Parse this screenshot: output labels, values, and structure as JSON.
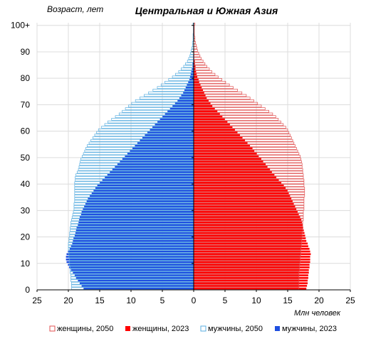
{
  "chart_data": {
    "type": "bar",
    "orientation": "horizontal-population-pyramid",
    "title": "Центральная и Южная Азия",
    "ylabel": "Возраст, лет",
    "xlabel": "Млн человек",
    "y_ticks": [
      "0",
      "10",
      "20",
      "30",
      "40",
      "50",
      "60",
      "70",
      "80",
      "90",
      "100+"
    ],
    "x_ticks": [
      "25",
      "20",
      "15",
      "10",
      "5",
      "0",
      "5",
      "10",
      "15",
      "20",
      "25"
    ],
    "xlim": [
      -25,
      25
    ],
    "ages": [
      0,
      1,
      2,
      3,
      4,
      5,
      6,
      7,
      8,
      9,
      10,
      11,
      12,
      13,
      14,
      15,
      16,
      17,
      18,
      19,
      20,
      21,
      22,
      23,
      24,
      25,
      26,
      27,
      28,
      29,
      30,
      31,
      32,
      33,
      34,
      35,
      36,
      37,
      38,
      39,
      40,
      41,
      42,
      43,
      44,
      45,
      46,
      47,
      48,
      49,
      50,
      51,
      52,
      53,
      54,
      55,
      56,
      57,
      58,
      59,
      60,
      61,
      62,
      63,
      64,
      65,
      66,
      67,
      68,
      69,
      70,
      71,
      72,
      73,
      74,
      75,
      76,
      77,
      78,
      79,
      80,
      81,
      82,
      83,
      84,
      85,
      86,
      87,
      88,
      89,
      90,
      91,
      92,
      93,
      94,
      95,
      96,
      97,
      98,
      99,
      100
    ],
    "legend_position": "bottom",
    "grid": true,
    "series": [
      {
        "name": "женщины, 2050",
        "side": "right",
        "style": "outline",
        "color": "#e05050",
        "values": [
          16.8,
          16.8,
          16.8,
          16.8,
          16.8,
          16.8,
          16.8,
          16.9,
          16.9,
          16.9,
          17.0,
          17.0,
          17.0,
          17.1,
          17.1,
          17.1,
          17.2,
          17.2,
          17.2,
          17.3,
          17.3,
          17.3,
          17.4,
          17.4,
          17.4,
          17.4,
          17.5,
          17.5,
          17.5,
          17.5,
          17.6,
          17.6,
          17.6,
          17.6,
          17.6,
          17.7,
          17.7,
          17.7,
          17.7,
          17.6,
          17.6,
          17.6,
          17.5,
          17.5,
          17.4,
          17.4,
          17.3,
          17.3,
          17.2,
          17.1,
          17.0,
          16.8,
          16.6,
          16.4,
          16.2,
          16.0,
          15.8,
          15.6,
          15.4,
          15.2,
          15.0,
          14.7,
          14.3,
          13.9,
          13.5,
          13.1,
          12.6,
          12.0,
          11.4,
          10.8,
          10.2,
          9.6,
          9.0,
          8.4,
          7.7,
          7.0,
          6.3,
          5.7,
          5.1,
          4.5,
          3.9,
          3.4,
          2.9,
          2.5,
          2.1,
          1.8,
          1.5,
          1.2,
          1.0,
          0.8,
          0.6,
          0.5,
          0.4,
          0.3,
          0.2,
          0.2,
          0.1,
          0.1,
          0.1,
          0.1,
          0.2
        ]
      },
      {
        "name": "женщины, 2023",
        "side": "right",
        "style": "filled",
        "color": "#ff0000",
        "values": [
          18.0,
          18.1,
          18.2,
          18.2,
          18.3,
          18.3,
          18.4,
          18.4,
          18.5,
          18.5,
          18.6,
          18.6,
          18.6,
          18.7,
          18.6,
          18.5,
          18.3,
          18.2,
          18.0,
          17.9,
          17.8,
          17.7,
          17.6,
          17.5,
          17.4,
          17.3,
          17.2,
          17.0,
          16.8,
          16.6,
          16.4,
          16.2,
          16.0,
          15.8,
          15.6,
          15.4,
          15.2,
          15.0,
          14.7,
          14.4,
          14.0,
          13.6,
          13.2,
          12.9,
          12.5,
          12.2,
          11.8,
          11.5,
          11.1,
          10.8,
          10.4,
          10.1,
          9.7,
          9.4,
          9.0,
          8.6,
          8.2,
          7.8,
          7.4,
          7.0,
          6.6,
          6.2,
          5.8,
          5.4,
          5.0,
          4.6,
          4.2,
          3.8,
          3.4,
          3.0,
          2.7,
          2.4,
          2.1,
          1.9,
          1.7,
          1.5,
          1.3,
          1.1,
          0.9,
          0.8,
          0.6,
          0.5,
          0.4,
          0.3,
          0.3,
          0.2,
          0.2,
          0.1,
          0.1,
          0.1,
          0.1,
          0.05,
          0.05,
          0.05,
          0.05,
          0.05,
          0.05,
          0.05,
          0.05,
          0.05,
          0.05
        ]
      },
      {
        "name": "мужчины, 2050",
        "side": "left",
        "style": "outline",
        "color": "#5aaee0",
        "values": [
          19.5,
          19.5,
          19.5,
          19.6,
          19.6,
          19.6,
          19.7,
          19.7,
          19.7,
          19.8,
          19.8,
          19.8,
          19.9,
          19.9,
          19.9,
          20.0,
          20.0,
          20.0,
          19.9,
          19.9,
          19.8,
          19.8,
          19.7,
          19.7,
          19.6,
          19.6,
          19.5,
          19.4,
          19.3,
          19.2,
          19.1,
          19.1,
          19.1,
          19.0,
          19.0,
          19.0,
          19.0,
          19.0,
          19.0,
          19.0,
          19.0,
          18.9,
          18.9,
          18.8,
          18.6,
          18.4,
          18.3,
          18.2,
          18.1,
          18.0,
          17.8,
          17.6,
          17.4,
          17.2,
          17.0,
          16.7,
          16.4,
          16.1,
          15.8,
          15.5,
          15.2,
          14.7,
          14.2,
          13.7,
          13.1,
          12.5,
          11.9,
          11.4,
          10.9,
          10.4,
          9.9,
          9.3,
          8.6,
          7.9,
          7.2,
          6.5,
          5.8,
          5.2,
          4.6,
          4.0,
          3.4,
          2.9,
          2.4,
          2.0,
          1.6,
          1.3,
          1.0,
          0.8,
          0.6,
          0.5,
          0.4,
          0.3,
          0.2,
          0.2,
          0.1,
          0.1,
          0.1,
          0.05,
          0.05,
          0.05,
          0.1
        ]
      },
      {
        "name": "мужчины, 2023",
        "side": "left",
        "style": "filled",
        "color": "#1f4fe0",
        "values": [
          17.6,
          17.9,
          18.2,
          18.5,
          18.8,
          19.0,
          19.3,
          19.6,
          19.9,
          20.1,
          20.3,
          20.4,
          20.4,
          20.3,
          20.1,
          19.8,
          19.6,
          19.4,
          19.3,
          19.2,
          19.0,
          18.9,
          18.8,
          18.7,
          18.5,
          18.4,
          18.3,
          18.2,
          18.0,
          17.9,
          17.7,
          17.5,
          17.3,
          17.1,
          16.9,
          16.6,
          16.3,
          16.0,
          15.7,
          15.4,
          15.0,
          14.6,
          14.2,
          13.8,
          13.4,
          13.0,
          12.6,
          12.2,
          11.8,
          11.4,
          11.0,
          10.6,
          10.2,
          9.8,
          9.4,
          9.0,
          8.6,
          8.2,
          7.8,
          7.4,
          7.0,
          6.6,
          6.2,
          5.8,
          5.4,
          5.0,
          4.6,
          4.2,
          3.8,
          3.4,
          3.0,
          2.6,
          2.3,
          2.0,
          1.7,
          1.5,
          1.3,
          1.1,
          0.9,
          0.7,
          0.6,
          0.5,
          0.4,
          0.3,
          0.2,
          0.2,
          0.1,
          0.1,
          0.1,
          0.05,
          0.05,
          0.05,
          0.05,
          0.05,
          0.05,
          0.05,
          0.05,
          0.05,
          0.05,
          0.05,
          0.05
        ]
      }
    ]
  }
}
